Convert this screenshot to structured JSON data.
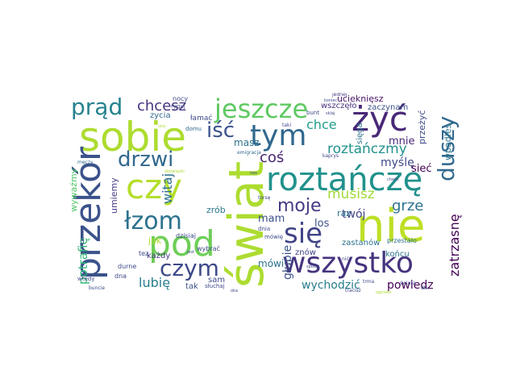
{
  "words": [
    {
      "text": "świat",
      "color": "#addc30",
      "vertical": true
    },
    {
      "text": "sobie",
      "color": "#addc30"
    },
    {
      "text": "nie",
      "color": "#bddf26"
    },
    {
      "text": "roztańczę",
      "color": "#21918c"
    },
    {
      "text": "przekór",
      "color": "#3b528b"
    },
    {
      "text": "żyć",
      "color": "#482878"
    },
    {
      "text": "tym",
      "color": "#31688e"
    },
    {
      "text": "czy",
      "color": "#b5de2b"
    },
    {
      "text": "pod",
      "color": "#6ece58"
    },
    {
      "text": "się",
      "color": "#414487"
    },
    {
      "text": "wszystko",
      "color": "#46337e"
    },
    {
      "text": "jeszcze",
      "color": "#5ec962"
    },
    {
      "text": "prąd",
      "color": "#26828e"
    },
    {
      "text": "łzom",
      "color": "#2c728e"
    },
    {
      "text": "czym",
      "color": "#3e4989"
    },
    {
      "text": "duszy",
      "color": "#31688e",
      "vertical": true
    },
    {
      "text": "drzwi",
      "color": "#31688e"
    },
    {
      "text": "iść",
      "color": "#3b528b"
    },
    {
      "text": "chcesz",
      "color": "#46327e"
    },
    {
      "text": "moje",
      "color": "#443a83"
    },
    {
      "text": "roztańczmy",
      "color": "#21918c"
    },
    {
      "text": "musisz",
      "color": "#a0da39"
    },
    {
      "text": "grze",
      "color": "#2c728e"
    },
    {
      "text": "zatrzasnę",
      "color": "#440154",
      "vertical": true
    },
    {
      "text": "potrafię",
      "color": "#35b779",
      "vertical": true
    },
    {
      "text": "wywaźmy",
      "color": "#52c569",
      "vertical": true
    },
    {
      "text": "lubię",
      "color": "#287d8e"
    },
    {
      "text": "wychodzić",
      "color": "#287d8e"
    },
    {
      "text": "powiedz",
      "color": "#440154"
    },
    {
      "text": "głupie",
      "color": "#3b528b",
      "vertical": true
    },
    {
      "text": "witaj",
      "color": "#2c728e",
      "vertical": true
    },
    {
      "text": "chce",
      "color": "#1f9e89"
    },
    {
      "text": "coś",
      "color": "#482475"
    },
    {
      "text": "masz",
      "color": "#2c728e"
    },
    {
      "text": "myślę",
      "color": "#3e4989"
    },
    {
      "text": "mam",
      "color": "#3b528b"
    },
    {
      "text": "mówi",
      "color": "#2c728e"
    },
    {
      "text": "twój",
      "color": "#414487"
    },
    {
      "text": "los",
      "color": "#3b528b"
    },
    {
      "text": "raz",
      "color": "#2c728e"
    },
    {
      "text": "mnie",
      "color": "#482878"
    },
    {
      "text": "sieć",
      "color": "#440154"
    },
    {
      "text": "przeżyć",
      "color": "#3e4989",
      "vertical": true
    },
    {
      "text": "wpadłes",
      "color": "#2c728e",
      "vertical": true
    },
    {
      "text": "ucieknięsz",
      "color": "#471365"
    },
    {
      "text": "zaczynam",
      "color": "#3b528b"
    },
    {
      "text": "wszczęło",
      "color": "#46327e"
    },
    {
      "text": "zastanów",
      "color": "#2c728e"
    },
    {
      "text": "znów",
      "color": "#414487"
    },
    {
      "text": "końcu",
      "color": "#2c728e"
    },
    {
      "text": "sięga",
      "color": "#2c728e",
      "vertical": true
    },
    {
      "text": "przestało",
      "color": "#2c728e"
    },
    {
      "text": "umiemy",
      "color": "#443983",
      "vertical": true
    },
    {
      "text": "zrób",
      "color": "#2a788e"
    },
    {
      "text": "jak",
      "color": "#addc30"
    },
    {
      "text": "każdy",
      "color": "#443a83"
    },
    {
      "text": "dzisiaj",
      "color": "#3e4989"
    },
    {
      "text": "sam",
      "color": "#3e4989"
    },
    {
      "text": "tak",
      "color": "#3b528b"
    },
    {
      "text": "słuchaj",
      "color": "#3e4989"
    },
    {
      "text": "durne",
      "color": "#3e4989"
    },
    {
      "text": "dna",
      "color": "#3e4989"
    },
    {
      "text": "tez",
      "color": "#3e4989"
    },
    {
      "text": "jest",
      "color": "#3e4989"
    },
    {
      "text": "wybrać",
      "color": "#3e4989"
    },
    {
      "text": "nocy",
      "color": "#3e4989"
    },
    {
      "text": "zycia",
      "color": "#31688e"
    },
    {
      "text": "łamać",
      "color": "#3e4989"
    },
    {
      "text": "domu",
      "color": "#31688e"
    },
    {
      "text": "ryguj",
      "color": "#3e4989"
    },
    {
      "text": "bunt",
      "color": "#3e4989"
    },
    {
      "text": "taki",
      "color": "#3e4989"
    },
    {
      "text": "jednej",
      "color": "#443983"
    },
    {
      "text": "nas",
      "color": "#3e4989"
    },
    {
      "text": "mówię",
      "color": "#3e4989"
    },
    {
      "text": "dnia",
      "color": "#3e4989"
    },
    {
      "text": "torsę",
      "color": "#3e4989"
    },
    {
      "text": "emigracja",
      "color": "#31688e"
    },
    {
      "text": "kaprys",
      "color": "#3e4989"
    },
    {
      "text": "chwili",
      "color": "#3e4989"
    },
    {
      "text": "sklaj",
      "color": "#3e4989"
    },
    {
      "text": "koniec",
      "color": "#3e4989"
    },
    {
      "text": "nić",
      "color": "#3e4989"
    },
    {
      "text": "trma",
      "color": "#3e4989"
    },
    {
      "text": "tracisz",
      "color": "#3e4989"
    },
    {
      "text": "świata",
      "color": "#3e4989"
    },
    {
      "text": "dla",
      "color": "#3e4989"
    },
    {
      "text": "buncie",
      "color": "#3e4989"
    },
    {
      "text": "oka",
      "color": "#3e4989"
    },
    {
      "text": "wtedy",
      "color": "#3e4989"
    },
    {
      "text": "męczy",
      "color": "#31688e"
    },
    {
      "text": "czasem",
      "color": "#3e4989"
    },
    {
      "text": "spokój",
      "color": "#3e4989"
    },
    {
      "text": "obowiązki",
      "color": "#addc30"
    },
    {
      "text": "uno",
      "color": "#addc30"
    },
    {
      "text": "ognisko",
      "color": "#addc30"
    }
  ]
}
